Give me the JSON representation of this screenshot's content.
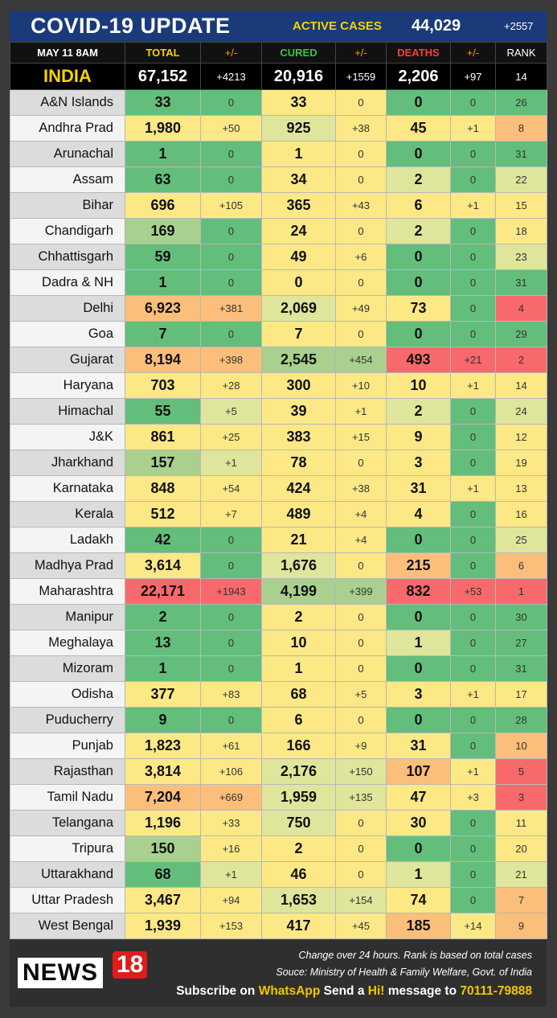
{
  "title": "COVID-19 UPDATE",
  "active_cases": {
    "label": "ACTIVE CASES",
    "value": "44,029",
    "change": "+2557"
  },
  "header": {
    "date": "MAY 11  8AM",
    "total": "TOTAL",
    "pm1": "+/-",
    "cured": "CURED",
    "pm2": "+/-",
    "deaths": "DEATHS",
    "pm3": "+/-",
    "rank": "RANK"
  },
  "india": {
    "name": "INDIA",
    "total": "67,152",
    "total_change": "+4213",
    "cured": "20,916",
    "cured_change": "+1559",
    "deaths": "2,206",
    "deaths_change": "+97",
    "rank": "14"
  },
  "rows": [
    {
      "name": "A&N Islands",
      "total": "33",
      "tc": "0",
      "cured": "33",
      "cc": "0",
      "deaths": "0",
      "dc": "0",
      "rank": "26"
    },
    {
      "name": "Andhra Prad",
      "total": "1,980",
      "tc": "+50",
      "cured": "925",
      "cc": "+38",
      "deaths": "45",
      "dc": "+1",
      "rank": "8"
    },
    {
      "name": "Arunachal",
      "total": "1",
      "tc": "0",
      "cured": "1",
      "cc": "0",
      "deaths": "0",
      "dc": "0",
      "rank": "31"
    },
    {
      "name": "Assam",
      "total": "63",
      "tc": "0",
      "cured": "34",
      "cc": "0",
      "deaths": "2",
      "dc": "0",
      "rank": "22"
    },
    {
      "name": "Bihar",
      "total": "696",
      "tc": "+105",
      "cured": "365",
      "cc": "+43",
      "deaths": "6",
      "dc": "+1",
      "rank": "15"
    },
    {
      "name": "Chandigarh",
      "total": "169",
      "tc": "0",
      "cured": "24",
      "cc": "0",
      "deaths": "2",
      "dc": "0",
      "rank": "18"
    },
    {
      "name": "Chhattisgarh",
      "total": "59",
      "tc": "0",
      "cured": "49",
      "cc": "+6",
      "deaths": "0",
      "dc": "0",
      "rank": "23"
    },
    {
      "name": "Dadra & NH",
      "total": "1",
      "tc": "0",
      "cured": "0",
      "cc": "0",
      "deaths": "0",
      "dc": "0",
      "rank": "31"
    },
    {
      "name": "Delhi",
      "total": "6,923",
      "tc": "+381",
      "cured": "2,069",
      "cc": "+49",
      "deaths": "73",
      "dc": "0",
      "rank": "4"
    },
    {
      "name": "Goa",
      "total": "7",
      "tc": "0",
      "cured": "7",
      "cc": "0",
      "deaths": "0",
      "dc": "0",
      "rank": "29"
    },
    {
      "name": "Gujarat",
      "total": "8,194",
      "tc": "+398",
      "cured": "2,545",
      "cc": "+454",
      "deaths": "493",
      "dc": "+21",
      "rank": "2"
    },
    {
      "name": "Haryana",
      "total": "703",
      "tc": "+28",
      "cured": "300",
      "cc": "+10",
      "deaths": "10",
      "dc": "+1",
      "rank": "14"
    },
    {
      "name": "Himachal",
      "total": "55",
      "tc": "+5",
      "cured": "39",
      "cc": "+1",
      "deaths": "2",
      "dc": "0",
      "rank": "24"
    },
    {
      "name": "J&K",
      "total": "861",
      "tc": "+25",
      "cured": "383",
      "cc": "+15",
      "deaths": "9",
      "dc": "0",
      "rank": "12"
    },
    {
      "name": "Jharkhand",
      "total": "157",
      "tc": "+1",
      "cured": "78",
      "cc": "0",
      "deaths": "3",
      "dc": "0",
      "rank": "19"
    },
    {
      "name": "Karnataka",
      "total": "848",
      "tc": "+54",
      "cured": "424",
      "cc": "+38",
      "deaths": "31",
      "dc": "+1",
      "rank": "13"
    },
    {
      "name": "Kerala",
      "total": "512",
      "tc": "+7",
      "cured": "489",
      "cc": "+4",
      "deaths": "4",
      "dc": "0",
      "rank": "16"
    },
    {
      "name": "Ladakh",
      "total": "42",
      "tc": "0",
      "cured": "21",
      "cc": "+4",
      "deaths": "0",
      "dc": "0",
      "rank": "25"
    },
    {
      "name": "Madhya Prad",
      "total": "3,614",
      "tc": "0",
      "cured": "1,676",
      "cc": "0",
      "deaths": "215",
      "dc": "0",
      "rank": "6"
    },
    {
      "name": "Maharashtra",
      "total": "22,171",
      "tc": "+1943",
      "cured": "4,199",
      "cc": "+399",
      "deaths": "832",
      "dc": "+53",
      "rank": "1"
    },
    {
      "name": "Manipur",
      "total": "2",
      "tc": "0",
      "cured": "2",
      "cc": "0",
      "deaths": "0",
      "dc": "0",
      "rank": "30"
    },
    {
      "name": "Meghalaya",
      "total": "13",
      "tc": "0",
      "cured": "10",
      "cc": "0",
      "deaths": "1",
      "dc": "0",
      "rank": "27"
    },
    {
      "name": "Mizoram",
      "total": "1",
      "tc": "0",
      "cured": "1",
      "cc": "0",
      "deaths": "0",
      "dc": "0",
      "rank": "31"
    },
    {
      "name": "Odisha",
      "total": "377",
      "tc": "+83",
      "cured": "68",
      "cc": "+5",
      "deaths": "3",
      "dc": "+1",
      "rank": "17"
    },
    {
      "name": "Puducherry",
      "total": "9",
      "tc": "0",
      "cured": "6",
      "cc": "0",
      "deaths": "0",
      "dc": "0",
      "rank": "28"
    },
    {
      "name": "Punjab",
      "total": "1,823",
      "tc": "+61",
      "cured": "166",
      "cc": "+9",
      "deaths": "31",
      "dc": "0",
      "rank": "10"
    },
    {
      "name": "Rajasthan",
      "total": "3,814",
      "tc": "+106",
      "cured": "2,176",
      "cc": "+150",
      "deaths": "107",
      "dc": "+1",
      "rank": "5"
    },
    {
      "name": "Tamil Nadu",
      "total": "7,204",
      "tc": "+669",
      "cured": "1,959",
      "cc": "+135",
      "deaths": "47",
      "dc": "+3",
      "rank": "3"
    },
    {
      "name": "Telangana",
      "total": "1,196",
      "tc": "+33",
      "cured": "750",
      "cc": "0",
      "deaths": "30",
      "dc": "0",
      "rank": "11"
    },
    {
      "name": "Tripura",
      "total": "150",
      "tc": "+16",
      "cured": "2",
      "cc": "0",
      "deaths": "0",
      "dc": "0",
      "rank": "20"
    },
    {
      "name": "Uttarakhand",
      "total": "68",
      "tc": "+1",
      "cured": "46",
      "cc": "0",
      "deaths": "1",
      "dc": "0",
      "rank": "21"
    },
    {
      "name": "Uttar Pradesh",
      "total": "3,467",
      "tc": "+94",
      "cured": "1,653",
      "cc": "+154",
      "deaths": "74",
      "dc": "0",
      "rank": "7"
    },
    {
      "name": "West Bengal",
      "total": "1,939",
      "tc": "+153",
      "cured": "417",
      "cc": "+45",
      "deaths": "185",
      "dc": "+14",
      "rank": "9"
    }
  ],
  "colors": {
    "green": "#63be7b",
    "lightgreen": "#a9d08e",
    "paleyellow": "#dfe59b",
    "yellow": "#fde886",
    "orange": "#fcbf7b",
    "red": "#f8696b",
    "rank_mid": "#f1e386"
  },
  "footer": {
    "logo_news": "NEWS",
    "logo_18": "18",
    "note": "Change over 24 hours. Rank is based on total cases",
    "source": "Souce: Ministry of Health & Family Welfare, Govt. of India",
    "sub_prefix": "Subscribe on ",
    "sub_whatsapp": "WhatsApp",
    "sub_middle": " Send a ",
    "sub_hi": "Hi!",
    "sub_message": " message to ",
    "sub_number": "70111-79888"
  }
}
